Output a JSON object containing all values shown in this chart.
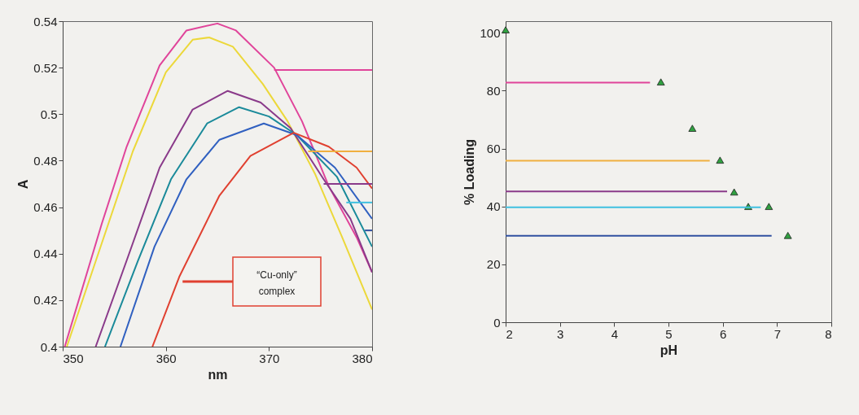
{
  "chart_data": [
    {
      "type": "line",
      "xlabel": "nm",
      "ylabel": "A",
      "xlim": [
        350,
        380
      ],
      "ylim": [
        0.4,
        0.54
      ],
      "xticks": [
        350,
        360,
        370,
        380
      ],
      "yticks": [
        0.4,
        0.42,
        0.44,
        0.46,
        0.48,
        0.5,
        0.52,
        0.54
      ],
      "grid": false,
      "marker": "none",
      "line_style": "solid",
      "series": [
        {
          "color": "#e0449a",
          "x": [
            350.2,
            353.8,
            356.2,
            359.4,
            362,
            365,
            366.8,
            370.5,
            373.2,
            375.8,
            378.5,
            380
          ],
          "values": [
            0.4,
            0.453,
            0.486,
            0.521,
            0.536,
            0.539,
            0.536,
            0.52,
            0.497,
            0.469,
            0.447,
            0.432
          ]
        },
        {
          "color": "#ecd83a",
          "x": [
            350.4,
            353.6,
            356.8,
            360,
            362.6,
            364.2,
            366.5,
            369.4,
            371.8,
            374.5,
            377.1,
            380
          ],
          "values": [
            0.4,
            0.442,
            0.484,
            0.518,
            0.532,
            0.533,
            0.529,
            0.513,
            0.497,
            0.474,
            0.447,
            0.416
          ]
        },
        {
          "color": "#8a3a8a",
          "x": [
            353.2,
            356.2,
            359.4,
            362.6,
            366,
            369.2,
            372.1,
            375.3,
            377.9,
            380
          ],
          "values": [
            0.4,
            0.437,
            0.477,
            0.502,
            0.51,
            0.505,
            0.494,
            0.472,
            0.455,
            0.432
          ]
        },
        {
          "color": "#1a8a9a",
          "x": [
            354.1,
            357.3,
            360.5,
            364,
            367.1,
            370,
            372.7,
            376.6,
            380
          ],
          "values": [
            0.4,
            0.437,
            0.472,
            0.496,
            0.503,
            0.499,
            0.491,
            0.473,
            0.443
          ]
        },
        {
          "color": "#3060c0",
          "x": [
            355.6,
            358.9,
            362,
            365.2,
            369.5,
            372.7,
            376.4,
            380
          ],
          "values": [
            0.4,
            0.443,
            0.472,
            0.489,
            0.496,
            0.491,
            0.477,
            0.455
          ]
        },
        {
          "color": "#e04030",
          "x": [
            358.7,
            361.3,
            365.2,
            368.2,
            372.4,
            375.8,
            378.5,
            380
          ],
          "values": [
            0.4,
            0.43,
            0.465,
            0.482,
            0.492,
            0.486,
            0.477,
            0.468
          ]
        },
        {
          "color": "#e0449a",
          "x": [
            370.5,
            380
          ],
          "values": [
            0.519,
            0.519
          ]
        },
        {
          "color": "#f0b040",
          "x": [
            373.8,
            380
          ],
          "values": [
            0.484,
            0.484
          ]
        },
        {
          "color": "#8a3a8a",
          "x": [
            375.3,
            380
          ],
          "values": [
            0.47,
            0.47
          ]
        },
        {
          "color": "#40c0e0",
          "x": [
            377.5,
            380
          ],
          "values": [
            0.462,
            0.462
          ]
        },
        {
          "color": "#3050a0",
          "x": [
            379.3,
            380
          ],
          "values": [
            0.45,
            0.45
          ]
        }
      ],
      "annotations": [
        "“Cu-only” complex"
      ]
    },
    {
      "type": "scatter",
      "xlabel": "pH",
      "ylabel": "% Loading",
      "xlim": [
        2,
        8
      ],
      "ylim": [
        0,
        104
      ],
      "xticks": [
        2,
        3,
        4,
        5,
        6,
        7,
        8
      ],
      "yticks": [
        0,
        20,
        40,
        60,
        80,
        100
      ],
      "grid": false,
      "marker": "triangle",
      "series": [
        {
          "color": "#30a040",
          "x": [
            2,
            4.86,
            5.44,
            5.95,
            6.21,
            6.47,
            6.85,
            7.2
          ],
          "values": [
            101,
            83,
            67,
            56,
            45,
            40,
            40,
            30
          ]
        },
        {
          "type": "line",
          "marker": "none",
          "color": "#e0449a",
          "x": [
            2,
            4.66
          ],
          "values": [
            82.8,
            82.8
          ]
        },
        {
          "type": "line",
          "marker": "none",
          "color": "#f0b040",
          "x": [
            2,
            5.76
          ],
          "values": [
            55.8,
            55.8
          ]
        },
        {
          "type": "line",
          "marker": "none",
          "color": "#8a3a8a",
          "x": [
            2,
            6.08
          ],
          "values": [
            45.2,
            45.2
          ]
        },
        {
          "type": "line",
          "marker": "none",
          "color": "#40c0e0",
          "x": [
            2,
            6.7
          ],
          "values": [
            39.7,
            39.7
          ]
        },
        {
          "type": "line",
          "marker": "none",
          "color": "#3050a0",
          "x": [
            2,
            6.9
          ],
          "values": [
            29.9,
            29.9
          ]
        }
      ]
    }
  ]
}
